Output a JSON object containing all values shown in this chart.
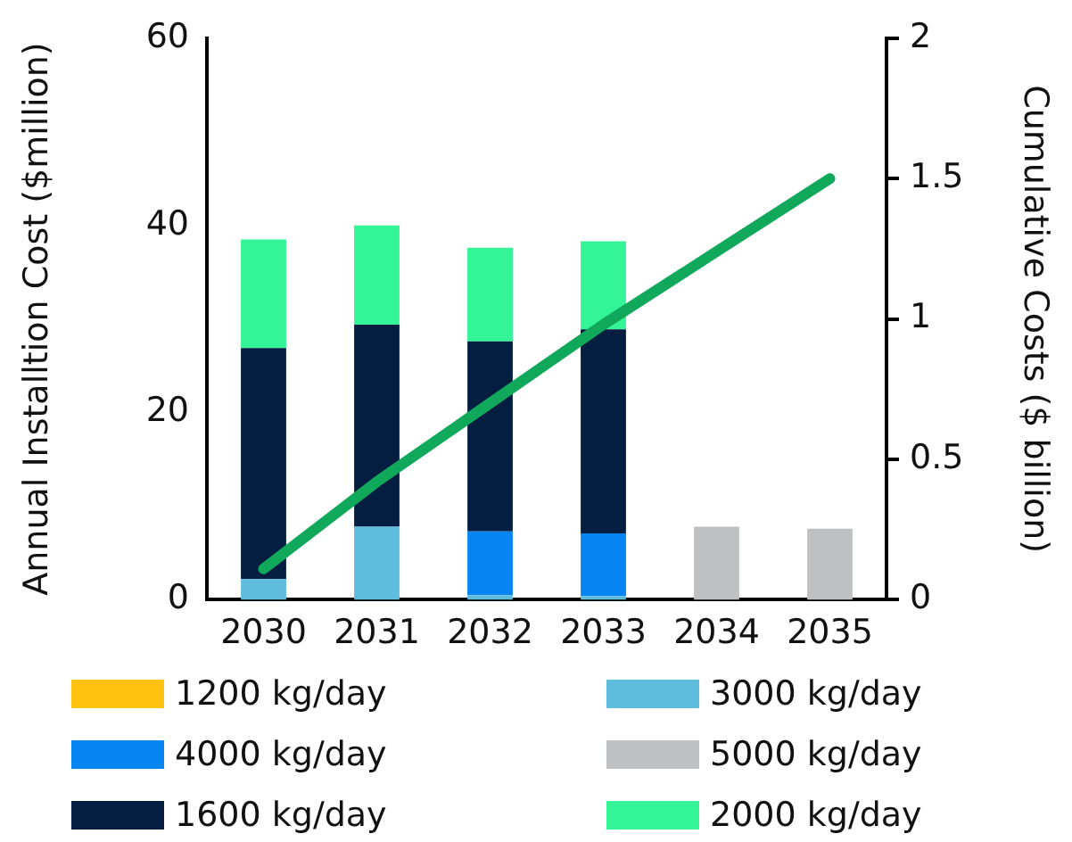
{
  "chart_data": {
    "type": "bar",
    "stacked": true,
    "categories": [
      "2030",
      "2031",
      "2032",
      "2033",
      "2034",
      "2035"
    ],
    "ylabel": "Annual Installtion Cost ($million)",
    "y2label": "Cumulative Costs ($ billion)",
    "ylim": [
      0,
      60
    ],
    "yticks": [
      0,
      20,
      40,
      60
    ],
    "y2lim": [
      0,
      2
    ],
    "y2ticks": [
      0,
      0.5,
      1,
      1.5,
      2
    ],
    "grid": false,
    "legend": "bottom",
    "series": [
      {
        "name": "1200 kg/day",
        "color": "#ffc20e",
        "values": [
          null,
          null,
          null,
          null,
          null,
          null
        ]
      },
      {
        "name": "3000 kg/day",
        "color": "#5fbcdd",
        "values": [
          2.2,
          7.8,
          0.5,
          0.4,
          null,
          null
        ]
      },
      {
        "name": "4000 kg/day",
        "color": "#0785f2",
        "values": [
          null,
          null,
          6.8,
          6.7,
          null,
          null
        ]
      },
      {
        "name": "5000 kg/day",
        "color": "#bfc0c2",
        "values": [
          null,
          null,
          null,
          null,
          7.8,
          7.6
        ]
      },
      {
        "name": "1600 kg/day",
        "color": "#031e40",
        "values": [
          24.7,
          21.6,
          20.3,
          21.8,
          null,
          null
        ]
      },
      {
        "name": "2000 kg/day",
        "color": "#33f497",
        "values": [
          11.6,
          10.6,
          10.0,
          9.4,
          null,
          null
        ]
      },
      {
        "type": "line",
        "axis": "y2",
        "color": "#10a85a",
        "marker": "none",
        "line_style": "solid",
        "values": [
          0.11,
          0.42,
          0.7,
          0.98,
          1.24,
          1.5
        ]
      }
    ]
  }
}
